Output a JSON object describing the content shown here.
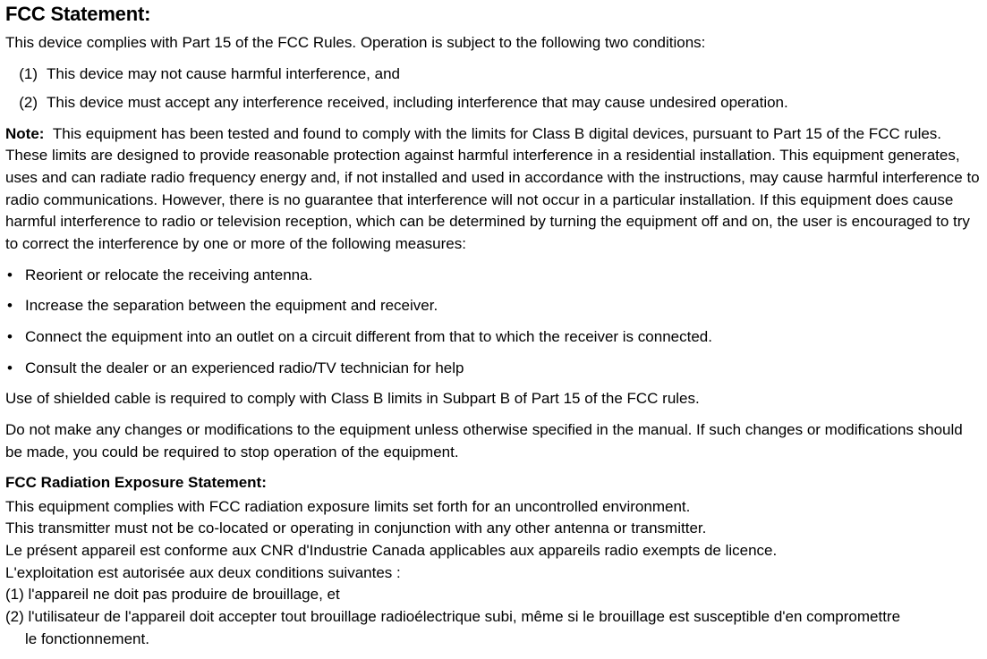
{
  "title": "FCC Statement:",
  "intro": "This device complies with Part 15 of the FCC Rules. Operation is subject to the following two conditions:",
  "conditions": [
    {
      "num": "(1)",
      "text": "This device may not cause harmful interference, and"
    },
    {
      "num": "(2)",
      "text": "This device must accept any interference received, including interference that may cause undesired operation."
    }
  ],
  "note_label": "Note:",
  "note_body": "This equipment has been tested and found to comply with the limits for Class B digital devices, pursuant to Part 15 of the FCC rules. These limits are designed to provide reasonable protection against harmful interference in a residential installation. This equipment generates, uses and can radiate radio frequency energy and, if not installed and used in accordance with the instructions, may cause harmful interference to radio communications. However, there is no guarantee that interference will not occur in a particular installation. If this equipment does cause harmful interference to radio or television reception, which can be determined by turning the equipment off and on, the user is encouraged to try to correct the interference by one or more of the following measures:",
  "measures": [
    "Reorient or relocate the receiving antenna.",
    "Increase the separation between the equipment and receiver.",
    "Connect the equipment into an outlet on a circuit different from that to which the receiver is connected.",
    "Consult the dealer or an experienced radio/TV technician for help"
  ],
  "shield": "Use of shielded cable is required to comply with Class B limits in Subpart B of Part 15 of the FCC rules.",
  "mods": "Do not make any changes or modifications to the equipment unless otherwise specified in the manual. If such changes or modifications should be made, you could be required to stop operation of the equipment.",
  "radiation_head": "FCC Radiation Exposure Statement:",
  "rad1": "This equipment complies with FCC radiation exposure limits set forth for an uncontrolled environment.",
  "rad2": "This transmitter must not be co-located or operating in conjunction with any other antenna or transmitter.",
  "fr1": "Le présent appareil est conforme aux CNR d'Industrie Canada applicables aux appareils radio exempts de licence.",
  "fr2": "L'exploitation est autorisée aux deux conditions suivantes :",
  "fr3": "(1) l'appareil ne doit pas produire de brouillage, et",
  "fr4a": "(2) l'utilisateur de l'appareil doit accepter tout brouillage radioélectrique subi, même si le brouillage est susceptible d'en compromettre",
  "fr4b": "le fonctionnement.",
  "colors": {
    "text": "#000000",
    "background": "#ffffff"
  },
  "font_sizes": {
    "title": 22,
    "body": 17,
    "subhead": 17
  }
}
